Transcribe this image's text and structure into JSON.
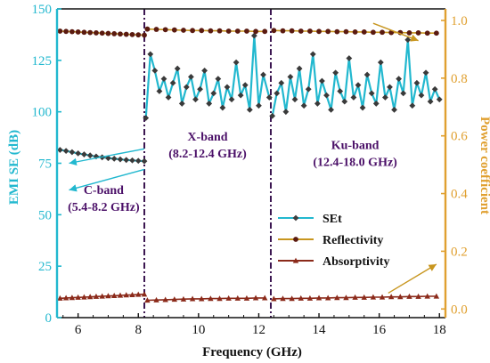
{
  "chart_data": {
    "type": "line",
    "title": "",
    "xlabel": "Frequency (GHz)",
    "ylabel_left": "EMI SE (dB)",
    "ylabel_right": "Power coefficient",
    "xlim": [
      5.3,
      18.2
    ],
    "ylim_left": [
      0,
      150
    ],
    "ylim_right": [
      -0.03,
      1.04
    ],
    "x_ticks": [
      6,
      8,
      10,
      12,
      14,
      16,
      18
    ],
    "y_left_ticks": [
      0,
      25,
      50,
      75,
      100,
      125,
      150
    ],
    "y_right_ticks": [
      0.0,
      0.2,
      0.4,
      0.6,
      0.8,
      1.0
    ],
    "band_boundaries": [
      8.2,
      12.4
    ],
    "bands": [
      {
        "label_line1": "C-band",
        "label_line2": "(5.4-8.2 GHz)",
        "label_x": 6.85,
        "label_y": 60
      },
      {
        "label_line1": "X-band",
        "label_line2": "(8.2-12.4 GHz)",
        "label_x": 10.3,
        "label_y": 86
      },
      {
        "label_line1": "Ku-band",
        "label_line2": "(12.4-18.0 GHz)",
        "label_x": 15.2,
        "label_y": 82
      }
    ],
    "legend": {
      "placement": "lower-right",
      "items": [
        {
          "label": "SEt",
          "marker": "diamond",
          "color": "#3f3f3f",
          "line_color": "#22b8cf"
        },
        {
          "label": "Reflectivity",
          "marker": "circle",
          "color": "#5a1a10",
          "line_color": "#c8961f"
        },
        {
          "label": "Absorptivity",
          "marker": "triangle",
          "color": "#8b2a1a",
          "line_color": "#8b2a1a"
        }
      ]
    },
    "series": [
      {
        "name": "SEt",
        "axis": "left",
        "segments": [
          {
            "x": [
              5.4,
              5.6,
              5.8,
              6.0,
              6.2,
              6.4,
              6.6,
              6.8,
              7.0,
              7.2,
              7.4,
              7.6,
              7.8,
              8.0,
              8.2
            ],
            "y": [
              81.5,
              81.0,
              80.4,
              79.8,
              79.3,
              78.8,
              78.3,
              77.9,
              77.5,
              77.2,
              76.9,
              76.6,
              76.4,
              76.2,
              76.0
            ]
          },
          {
            "x": [
              8.25,
              8.4,
              8.55,
              8.7,
              8.85,
              9.0,
              9.15,
              9.3,
              9.45,
              9.6,
              9.75,
              9.9,
              10.05,
              10.2,
              10.35,
              10.5,
              10.65,
              10.8,
              10.95,
              11.1,
              11.25,
              11.4,
              11.55,
              11.7,
              11.85,
              12.0,
              12.15,
              12.35
            ],
            "y": [
              97,
              128,
              120,
              110,
              116,
              107,
              114,
              121,
              104,
              112,
              117,
              106,
              111,
              120,
              104,
              109,
              116,
              102,
              112,
              106,
              124,
              108,
              113,
              101,
              137,
              103,
              118,
              107
            ]
          },
          {
            "x": [
              12.45,
              12.6,
              12.75,
              12.9,
              13.05,
              13.2,
              13.35,
              13.5,
              13.65,
              13.8,
              13.95,
              14.1,
              14.25,
              14.4,
              14.55,
              14.7,
              14.85,
              15.0,
              15.15,
              15.3,
              15.45,
              15.6,
              15.75,
              15.9,
              16.05,
              16.2,
              16.35,
              16.5,
              16.65,
              16.8,
              16.95,
              17.1,
              17.25,
              17.4,
              17.55,
              17.7,
              17.85,
              18.0
            ],
            "y": [
              98,
              109,
              114,
              100,
              117,
              106,
              121,
              103,
              111,
              128,
              104,
              115,
              108,
              101,
              119,
              110,
              105,
              126,
              107,
              113,
              102,
              118,
              109,
              104,
              124,
              107,
              112,
              101,
              116,
              109,
              135,
              103,
              114,
              108,
              119,
              105,
              111,
              106
            ]
          }
        ]
      },
      {
        "name": "Reflectivity",
        "axis": "right",
        "segments": [
          {
            "x": [
              5.4,
              5.6,
              5.8,
              6.0,
              6.2,
              6.4,
              6.6,
              6.8,
              7.0,
              7.2,
              7.4,
              7.6,
              7.8,
              8.0,
              8.2
            ],
            "y": [
              0.963,
              0.962,
              0.961,
              0.96,
              0.959,
              0.958,
              0.957,
              0.956,
              0.955,
              0.954,
              0.953,
              0.952,
              0.951,
              0.95,
              0.949
            ]
          },
          {
            "x": [
              8.3,
              8.6,
              8.9,
              9.2,
              9.5,
              9.8,
              10.1,
              10.4,
              10.7,
              11.0,
              11.3,
              11.6,
              11.9,
              12.2
            ],
            "y": [
              0.97,
              0.969,
              0.968,
              0.967,
              0.966,
              0.965,
              0.965,
              0.964,
              0.964,
              0.963,
              0.963,
              0.963,
              0.962,
              0.962
            ]
          },
          {
            "x": [
              12.5,
              12.8,
              13.1,
              13.4,
              13.7,
              14.0,
              14.3,
              14.6,
              14.9,
              15.2,
              15.5,
              15.8,
              16.1,
              16.4,
              16.7,
              17.0,
              17.3,
              17.6,
              17.9
            ],
            "y": [
              0.965,
              0.964,
              0.964,
              0.963,
              0.963,
              0.962,
              0.962,
              0.961,
              0.961,
              0.96,
              0.96,
              0.959,
              0.959,
              0.958,
              0.958,
              0.957,
              0.957,
              0.956,
              0.956
            ]
          }
        ]
      },
      {
        "name": "Absorptivity",
        "axis": "right",
        "segments": [
          {
            "x": [
              5.4,
              5.6,
              5.8,
              6.0,
              6.2,
              6.4,
              6.6,
              6.8,
              7.0,
              7.2,
              7.4,
              7.6,
              7.8,
              8.0,
              8.2
            ],
            "y": [
              0.037,
              0.038,
              0.039,
              0.04,
              0.041,
              0.042,
              0.043,
              0.044,
              0.045,
              0.046,
              0.047,
              0.048,
              0.049,
              0.05,
              0.051
            ]
          },
          {
            "x": [
              8.3,
              8.6,
              8.9,
              9.2,
              9.5,
              9.8,
              10.1,
              10.4,
              10.7,
              11.0,
              11.3,
              11.6,
              11.9,
              12.2
            ],
            "y": [
              0.03,
              0.031,
              0.032,
              0.033,
              0.034,
              0.035,
              0.035,
              0.036,
              0.036,
              0.037,
              0.037,
              0.037,
              0.038,
              0.038
            ]
          },
          {
            "x": [
              12.5,
              12.8,
              13.1,
              13.4,
              13.7,
              14.0,
              14.3,
              14.6,
              14.9,
              15.2,
              15.5,
              15.8,
              16.1,
              16.4,
              16.7,
              17.0,
              17.3,
              17.6,
              17.9
            ],
            "y": [
              0.035,
              0.036,
              0.036,
              0.037,
              0.037,
              0.038,
              0.038,
              0.039,
              0.039,
              0.04,
              0.04,
              0.041,
              0.041,
              0.042,
              0.042,
              0.043,
              0.043,
              0.044,
              0.044
            ]
          }
        ]
      }
    ],
    "annotations": [
      {
        "type": "arrow",
        "from": [
          8.2,
          82
        ],
        "to": [
          5.7,
          75
        ],
        "axis": "left",
        "color": "#22b8cf"
      },
      {
        "type": "arrow",
        "from": [
          8.2,
          72
        ],
        "to": [
          5.7,
          62
        ],
        "axis": "left",
        "color": "#22b8cf"
      },
      {
        "type": "arrow",
        "from": [
          15.8,
          0.99
        ],
        "to": [
          17.3,
          0.93
        ],
        "axis": "right",
        "color": "#c8961f"
      },
      {
        "type": "arrow",
        "from": [
          16.3,
          0.055
        ],
        "to": [
          17.9,
          0.155
        ],
        "axis": "right",
        "color": "#c8961f"
      }
    ],
    "colors": {
      "left_axis": "#22b8cf",
      "right_axis": "#e0a030",
      "set_line": "#22b8cf",
      "set_marker": "#3a3a3a",
      "refl_line": "#c8961f",
      "refl_marker": "#5a1a10",
      "abs_marker": "#8b2a1a",
      "band_line": "#3b1550",
      "band_text": "#4b1068"
    }
  }
}
